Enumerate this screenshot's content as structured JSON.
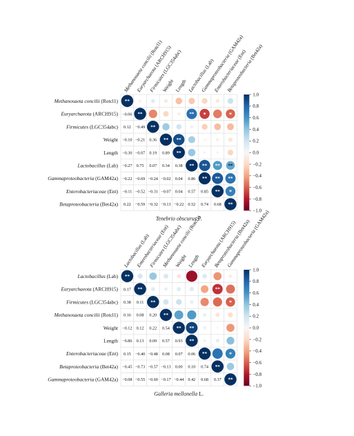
{
  "chart_data": [
    {
      "type": "heatmap",
      "caption": "Tenebrio obscurus F.",
      "lower_triangle": "numbers",
      "upper_triangle": "circles",
      "variables": [
        {
          "label": "Methanosaeta concilii",
          "suffix": " (Rotcl1)",
          "italic": true
        },
        {
          "label": "Euryarchaeota",
          "suffix": " (ARCH915)",
          "italic": true
        },
        {
          "label": "Firmicutes",
          "suffix": " (LGC354abc)",
          "italic": true
        },
        {
          "label": "Weight",
          "suffix": "",
          "italic": false
        },
        {
          "label": "Length",
          "suffix": "",
          "italic": false
        },
        {
          "label": "Lactobacillus",
          "suffix": " (Lab)",
          "italic": true
        },
        {
          "label": "Gammaproteobacteria",
          "suffix": " (GAM42a)",
          "italic": true
        },
        {
          "label": "Enterobacteriaceae",
          "suffix": " (Ent)",
          "italic": true
        },
        {
          "label": "Betaproteobacteria",
          "suffix": " (Bet42a)",
          "italic": true
        }
      ],
      "matrix": [
        [
          1,
          -0.06,
          0.12,
          -0.1,
          -0.3,
          -0.27,
          -0.22,
          -0.11,
          0.22
        ],
        [
          -0.06,
          1,
          -0.49,
          -0.21,
          -0.07,
          0.75,
          -0.69,
          -0.52,
          -0.59
        ],
        [
          0.12,
          -0.49,
          1,
          0.36,
          0.19,
          0.07,
          -0.24,
          -0.31,
          -0.32
        ],
        [
          -0.1,
          -0.21,
          0.36,
          1,
          0.89,
          0.34,
          -0.02,
          -0.07,
          -0.13
        ],
        [
          -0.3,
          -0.07,
          0.19,
          0.89,
          1,
          0.38,
          0.04,
          0.04,
          -0.22
        ],
        [
          -0.27,
          0.75,
          0.07,
          0.34,
          0.38,
          1,
          0.86,
          0.57,
          0.52
        ],
        [
          -0.22,
          -0.69,
          -0.24,
          -0.02,
          0.04,
          0.86,
          1,
          0.85,
          0.74
        ],
        [
          -0.11,
          -0.52,
          -0.31,
          -0.07,
          0.04,
          0.57,
          0.85,
          1,
          0.68
        ],
        [
          0.22,
          -0.59,
          -0.32,
          -0.13,
          -0.22,
          0.52,
          0.74,
          0.68,
          1
        ]
      ],
      "significance": [
        [
          0,
          0,
          0,
          0,
          0,
          0,
          0,
          0,
          0
        ],
        [
          0,
          0,
          0,
          0,
          0,
          2,
          1,
          0,
          1
        ],
        [
          0,
          0,
          0,
          0,
          0,
          0,
          0,
          0,
          0
        ],
        [
          0,
          0,
          0,
          0,
          2,
          0,
          0,
          0,
          0
        ],
        [
          0,
          0,
          0,
          0,
          0,
          0,
          0,
          0,
          0
        ],
        [
          0,
          0,
          0,
          0,
          0,
          0,
          2,
          2,
          2
        ],
        [
          0,
          0,
          0,
          0,
          0,
          0,
          0,
          2,
          2
        ],
        [
          0,
          0,
          0,
          0,
          0,
          0,
          0,
          0,
          1
        ],
        [
          0,
          0,
          0,
          0,
          0,
          0,
          0,
          0,
          0
        ]
      ]
    },
    {
      "type": "heatmap",
      "caption": "Galleria mellonella L.",
      "lower_triangle": "numbers",
      "upper_triangle": "circles",
      "variables": [
        {
          "label": "Lactobacillus",
          "suffix": " (Lab)",
          "italic": true
        },
        {
          "label": "Euryarchaeota",
          "suffix": " (ARCH915)",
          "italic": true
        },
        {
          "label": "Firmicutes",
          "suffix": " (LGC354abc)",
          "italic": true
        },
        {
          "label": "Methanosaeta concilii",
          "suffix": " (Rotcl1)",
          "italic": true
        },
        {
          "label": "Weight",
          "suffix": "",
          "italic": false
        },
        {
          "label": "Length",
          "suffix": "",
          "italic": false
        },
        {
          "label": "Enterobacteriaceae",
          "suffix": " (Ent)",
          "italic": true
        },
        {
          "label": "Betaproteobacteria",
          "suffix": " (Bet42a)",
          "italic": true
        },
        {
          "label": "Gammaproteobacteria",
          "suffix": " (GAM42a)",
          "italic": true
        }
      ],
      "top_labels": [
        {
          "label": "Lactobacillus",
          "suffix": " (Lab)",
          "italic": true
        },
        {
          "label": "Enterobacteriaceae",
          "suffix": " (Ent)",
          "italic": true
        },
        {
          "label": "Firmicutes",
          "suffix": " (LGC354abc)",
          "italic": true
        },
        {
          "label": "Methanosaeta concilii",
          "suffix": " (Rotcl1)",
          "italic": true
        },
        {
          "label": "Weight",
          "suffix": "",
          "italic": false
        },
        {
          "label": "Length",
          "suffix": "",
          "italic": false
        },
        {
          "label": "Euryarchaeota",
          "suffix": " (ARCH915)",
          "italic": true
        },
        {
          "label": "Betaproteobacteria",
          "suffix": " (Bet42a)",
          "italic": true
        },
        {
          "label": "Gammaproteobacteria",
          "suffix": " (GAM42a)",
          "italic": true
        }
      ],
      "matrix": [
        [
          1,
          0.17,
          0.38,
          0.16,
          -0.12,
          -0.86,
          0.15,
          -0.45,
          -0.08
        ],
        [
          0.17,
          1,
          0.11,
          0.08,
          0.12,
          0.13,
          -0.4,
          -0.73,
          -0.55
        ],
        [
          0.38,
          0.11,
          1,
          0.2,
          0.22,
          0.09,
          -0.48,
          -0.57,
          -0.6
        ],
        [
          0.16,
          0.08,
          0.2,
          1,
          0.54,
          0.57,
          0.08,
          -0.13,
          -0.17
        ],
        [
          -0.12,
          0.12,
          0.22,
          0.54,
          1,
          0.93,
          0.07,
          0.0,
          -0.44
        ],
        [
          -0.86,
          0.13,
          0.09,
          0.57,
          0.93,
          1,
          0.06,
          0.1,
          0.42
        ],
        [
          0.15,
          -0.4,
          -0.48,
          0.08,
          0.07,
          0.06,
          1,
          0.74,
          0.68
        ],
        [
          -0.45,
          -0.73,
          -0.57,
          -0.13,
          0.0,
          0.1,
          0.74,
          1,
          0.37
        ],
        [
          -0.08,
          -0.55,
          -0.6,
          -0.17,
          -0.44,
          0.42,
          0.68,
          0.37,
          1
        ]
      ],
      "significance": [
        [
          0,
          0,
          0,
          0,
          0,
          0,
          0,
          0,
          0
        ],
        [
          0,
          0,
          0,
          0,
          0,
          0,
          0,
          2,
          0
        ],
        [
          0,
          0,
          0,
          0,
          0,
          0,
          0,
          0,
          1
        ],
        [
          0,
          0,
          0,
          0,
          0,
          0,
          0,
          0,
          0
        ],
        [
          0,
          0,
          0,
          0,
          0,
          2,
          0,
          0,
          0
        ],
        [
          0,
          0,
          0,
          0,
          0,
          0,
          0,
          0,
          0
        ],
        [
          0,
          0,
          0,
          0,
          0,
          0,
          0,
          0,
          1
        ],
        [
          0,
          0,
          0,
          0,
          0,
          0,
          0,
          0,
          0
        ],
        [
          0,
          0,
          0,
          0,
          0,
          0,
          0,
          0,
          0
        ]
      ]
    }
  ],
  "colorbar": {
    "ticks": [
      "1.0",
      "0.8",
      "0.6",
      "0.4",
      "0.2",
      "0.0",
      "−0.2",
      "−0.4",
      "−0.6",
      "−0.8",
      "−1.0"
    ],
    "colors": {
      "positive": "#053061",
      "neutral": "#f7f7f7",
      "negative": "#67001f"
    }
  },
  "marks": {
    "one": "*",
    "two": "**"
  }
}
